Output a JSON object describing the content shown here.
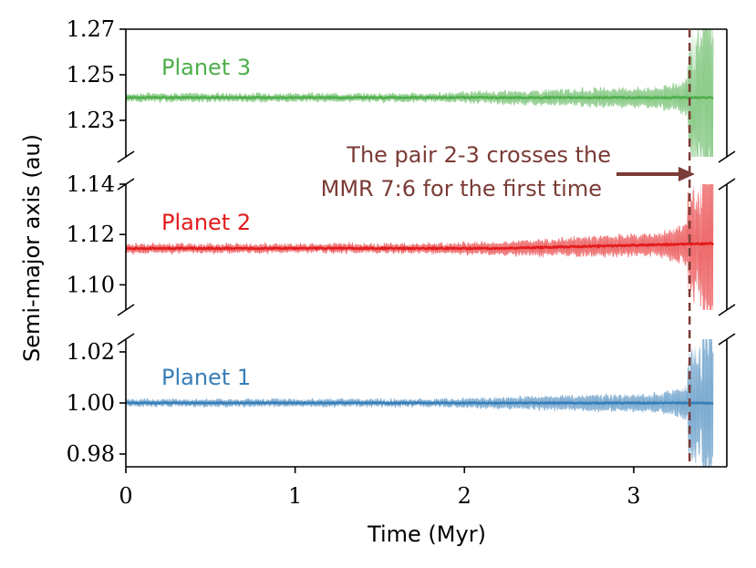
{
  "chart_data": {
    "type": "line",
    "xlabel": "Time (Myr)",
    "ylabel": "Semi-major axis (au)",
    "xlim": [
      0,
      3.55
    ],
    "xticks": [
      0,
      1,
      2,
      3
    ],
    "xtick_labels": [
      "0",
      "1",
      "2",
      "3"
    ],
    "crossing_time": 3.33,
    "annotation": {
      "line1": "The pair 2-3 crosses the",
      "line2": "MMR 7:6 for the first time"
    },
    "panels": [
      {
        "name": "Planet 3",
        "color": "#4daf4a",
        "center": 1.24,
        "ylim": [
          1.214,
          1.27
        ],
        "yticks": [
          1.23,
          1.25,
          1.27
        ],
        "ytick_labels": [
          "1.23",
          "1.25",
          "1.27"
        ]
      },
      {
        "name": "Planet 2",
        "color": "#e41a1c",
        "center": 1.1145,
        "ylim": [
          1.09,
          1.14
        ],
        "yticks": [
          1.1,
          1.12,
          1.14
        ],
        "ytick_labels": [
          "1.10",
          "1.12",
          "1.14"
        ]
      },
      {
        "name": "Planet 1",
        "color": "#377eb8",
        "center": 1.0,
        "ylim": [
          0.975,
          1.025
        ],
        "yticks": [
          0.98,
          1.0,
          1.02
        ],
        "ytick_labels": [
          "0.98",
          "1.00",
          "1.02"
        ]
      }
    ]
  }
}
